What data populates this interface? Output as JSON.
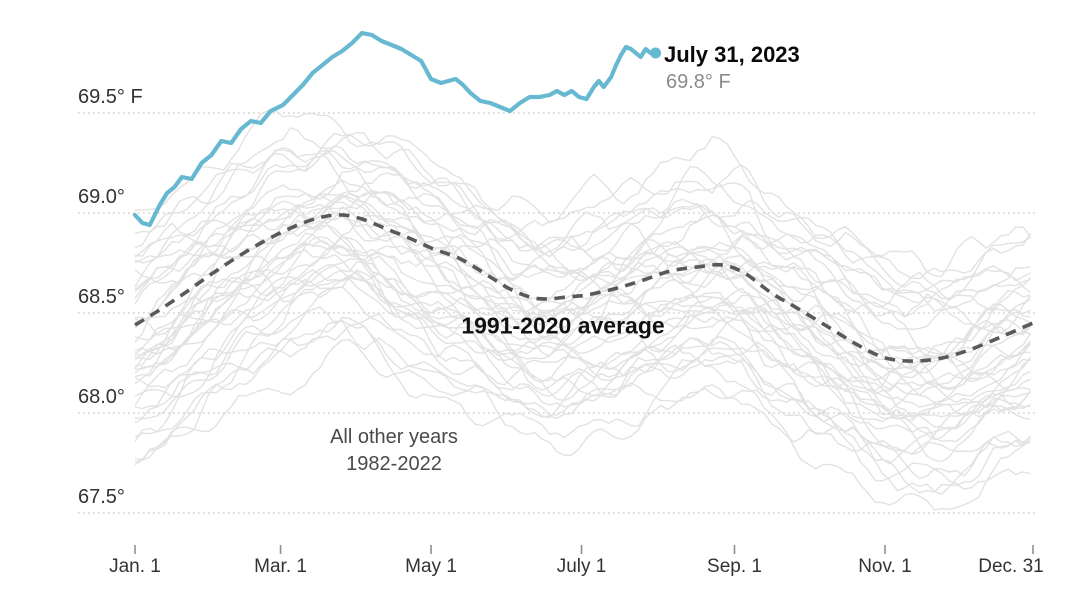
{
  "chart_data": {
    "type": "line",
    "title": "",
    "unit": "°F",
    "x_axis": {
      "range_days": [
        0,
        364
      ],
      "ticks": [
        {
          "day": 0,
          "label": "Jan. 1"
        },
        {
          "day": 59,
          "label": "Mar. 1"
        },
        {
          "day": 120,
          "label": "May 1"
        },
        {
          "day": 181,
          "label": "July 1"
        },
        {
          "day": 243,
          "label": "Sep. 1"
        },
        {
          "day": 304,
          "label": "Nov. 1"
        },
        {
          "day": 364,
          "label": "Dec. 31"
        }
      ]
    },
    "y_axis": {
      "grid": "dotted",
      "range": [
        67.3,
        70.0
      ],
      "ticks": [
        {
          "value": 69.5,
          "label": "69.5° F"
        },
        {
          "value": 69.0,
          "label": "69.0°"
        },
        {
          "value": 68.5,
          "label": "68.5°"
        },
        {
          "value": 68.0,
          "label": "68.0°"
        },
        {
          "value": 67.5,
          "label": "67.5°"
        }
      ]
    },
    "series": [
      {
        "name": "2023",
        "style": "bold-solid",
        "color": "#66b9d1",
        "points": [
          [
            0,
            68.99
          ],
          [
            3,
            68.95
          ],
          [
            6,
            68.94
          ],
          [
            10,
            69.04
          ],
          [
            13,
            69.1
          ],
          [
            16,
            69.13
          ],
          [
            19,
            69.18
          ],
          [
            23,
            69.17
          ],
          [
            27,
            69.25
          ],
          [
            31,
            69.29
          ],
          [
            35,
            69.36
          ],
          [
            39,
            69.35
          ],
          [
            43,
            69.42
          ],
          [
            47,
            69.46
          ],
          [
            51,
            69.45
          ],
          [
            55,
            69.51
          ],
          [
            60,
            69.54
          ],
          [
            64,
            69.59
          ],
          [
            68,
            69.64
          ],
          [
            72,
            69.7
          ],
          [
            76,
            69.74
          ],
          [
            80,
            69.78
          ],
          [
            84,
            69.81
          ],
          [
            88,
            69.85
          ],
          [
            92,
            69.9
          ],
          [
            96,
            69.89
          ],
          [
            100,
            69.86
          ],
          [
            104,
            69.84
          ],
          [
            108,
            69.82
          ],
          [
            112,
            69.79
          ],
          [
            116,
            69.76
          ],
          [
            120,
            69.67
          ],
          [
            124,
            69.65
          ],
          [
            127,
            69.66
          ],
          [
            130,
            69.67
          ],
          [
            133,
            69.64
          ],
          [
            136,
            69.6
          ],
          [
            140,
            69.56
          ],
          [
            144,
            69.55
          ],
          [
            148,
            69.53
          ],
          [
            152,
            69.51
          ],
          [
            156,
            69.55
          ],
          [
            160,
            69.58
          ],
          [
            164,
            69.58
          ],
          [
            168,
            69.59
          ],
          [
            171,
            69.61
          ],
          [
            174,
            69.59
          ],
          [
            177,
            69.61
          ],
          [
            180,
            69.58
          ],
          [
            183,
            69.57
          ],
          [
            186,
            69.63
          ],
          [
            188,
            69.66
          ],
          [
            190,
            69.63
          ],
          [
            193,
            69.68
          ],
          [
            195,
            69.74
          ],
          [
            197,
            69.79
          ],
          [
            199,
            69.83
          ],
          [
            201,
            69.82
          ],
          [
            203,
            69.8
          ],
          [
            205,
            69.78
          ],
          [
            207,
            69.82
          ],
          [
            209,
            69.8
          ],
          [
            211,
            69.8
          ]
        ]
      },
      {
        "name": "1991-2020 average",
        "style": "dashed",
        "color": "#595959",
        "points": [
          [
            0,
            68.44
          ],
          [
            8,
            68.5
          ],
          [
            19,
            68.59
          ],
          [
            34,
            68.72
          ],
          [
            51,
            68.85
          ],
          [
            66,
            68.94
          ],
          [
            76,
            68.98
          ],
          [
            84,
            68.99
          ],
          [
            92,
            68.97
          ],
          [
            102,
            68.92
          ],
          [
            112,
            68.87
          ],
          [
            121,
            68.82
          ],
          [
            132,
            68.77
          ],
          [
            144,
            68.68
          ],
          [
            152,
            68.62
          ],
          [
            160,
            68.58
          ],
          [
            167,
            68.57
          ],
          [
            175,
            68.58
          ],
          [
            183,
            68.59
          ],
          [
            194,
            68.62
          ],
          [
            205,
            68.66
          ],
          [
            217,
            68.71
          ],
          [
            228,
            68.73
          ],
          [
            238,
            68.74
          ],
          [
            247,
            68.7
          ],
          [
            258,
            68.6
          ],
          [
            269,
            68.52
          ],
          [
            281,
            68.43
          ],
          [
            293,
            68.34
          ],
          [
            303,
            68.28
          ],
          [
            313,
            68.26
          ],
          [
            325,
            68.27
          ],
          [
            337,
            68.31
          ],
          [
            351,
            68.38
          ],
          [
            364,
            68.45
          ]
        ]
      },
      {
        "name": "All other years (1982-2022)",
        "style": "thin-background",
        "color": "#e2e2e2",
        "year_start": 1982,
        "year_end": 2022,
        "count": 41,
        "note": "41 faint gray daily lines forming the background band; rendered procedurally around the 1991-2020 average, spanning roughly 67.4-69.6 °F"
      }
    ],
    "end_marker": {
      "series": "2023",
      "day": 211,
      "value": 69.8
    }
  },
  "annotations": {
    "current_date": "July 31, 2023",
    "current_temp": "69.8° F",
    "average_label": "1991-2020 average",
    "other_years_line1": "All other years",
    "other_years_line2": "1982-2022"
  },
  "colors": {
    "highlight_line": "#66b9d1",
    "average_line": "#595959",
    "background_lines": "#e2e2e2",
    "gridline": "#c4c4c4",
    "tick": "#8f8f8f",
    "axis_text": "#333333",
    "annotation_secondary": "#8b8b8b",
    "background": "#ffffff"
  }
}
